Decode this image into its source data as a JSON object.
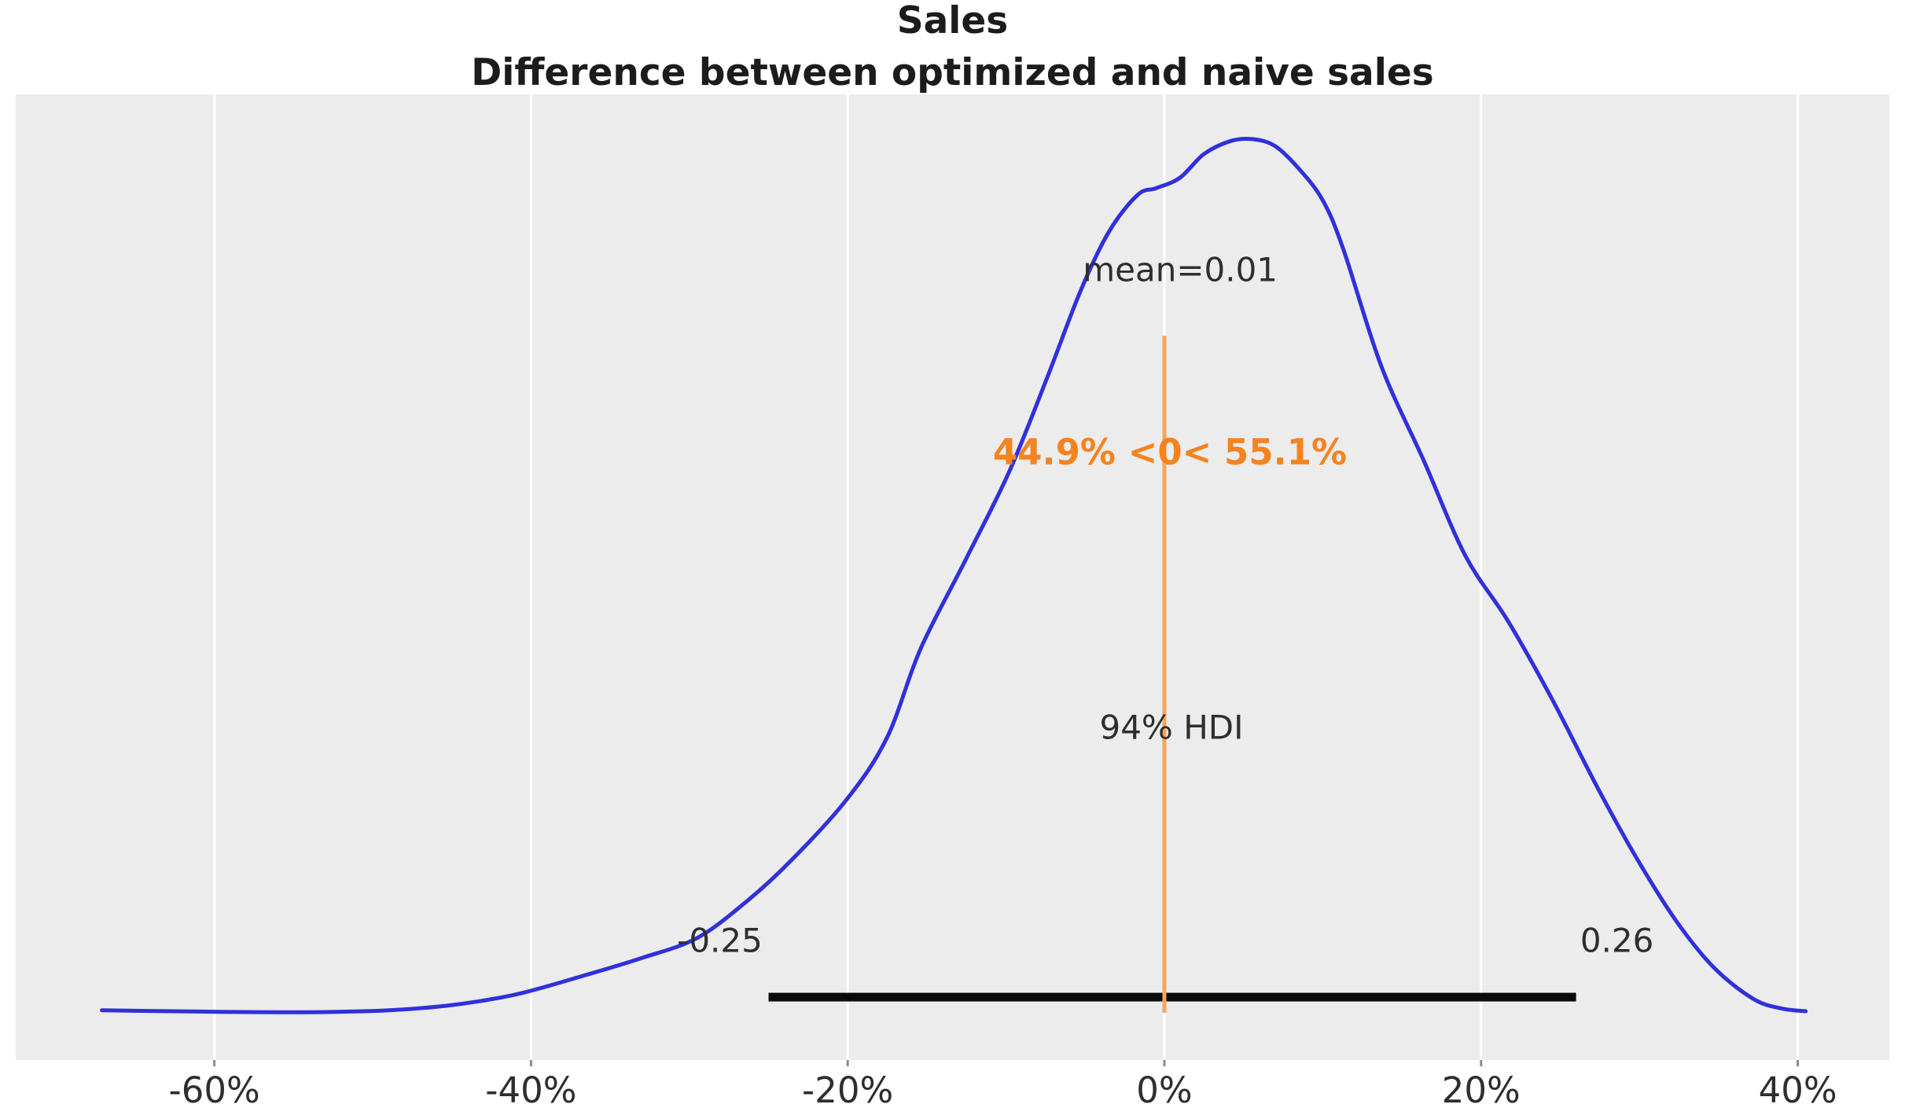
{
  "chart_data": {
    "type": "kde",
    "title": "Sales",
    "subtitle": "Difference between optimized and naive sales",
    "xlabel": "",
    "ylabel": "",
    "xlim": [
      -0.725,
      0.458
    ],
    "grid": "vertical-white-lines",
    "x_ticks": [
      {
        "label": "-60%",
        "value": -0.6
      },
      {
        "label": "-40%",
        "value": -0.4
      },
      {
        "label": "-20%",
        "value": -0.2
      },
      {
        "label": "0%",
        "value": 0.0
      },
      {
        "label": "20%",
        "value": 0.2
      },
      {
        "label": "40%",
        "value": 0.4
      }
    ],
    "mean": {
      "value": 0.01,
      "label": "mean=0.01"
    },
    "ref_val": {
      "value": 0,
      "pct_below": 44.9,
      "pct_above": 55.1,
      "label": "44.9% <0< 55.1%"
    },
    "hdi": {
      "probability": "94%",
      "label": "94% HDI",
      "lower": -0.25,
      "upper": 0.26,
      "lower_label": "-0.25",
      "upper_label": "0.26"
    },
    "curve": {
      "note": "x = difference value (fraction), y = density normalized to peak = 1",
      "points": [
        [
          -0.671,
          0.002
        ],
        [
          -0.63,
          0.001
        ],
        [
          -0.58,
          0.0
        ],
        [
          -0.53,
          0.0
        ],
        [
          -0.49,
          0.002
        ],
        [
          -0.45,
          0.008
        ],
        [
          -0.41,
          0.02
        ],
        [
          -0.37,
          0.04
        ],
        [
          -0.33,
          0.062
        ],
        [
          -0.295,
          0.085
        ],
        [
          -0.263,
          0.128
        ],
        [
          -0.235,
          0.175
        ],
        [
          -0.2,
          0.245
        ],
        [
          -0.175,
          0.315
        ],
        [
          -0.154,
          0.416
        ],
        [
          -0.125,
          0.52
        ],
        [
          -0.098,
          0.619
        ],
        [
          -0.074,
          0.727
        ],
        [
          -0.053,
          0.826
        ],
        [
          -0.035,
          0.894
        ],
        [
          -0.017,
          0.936
        ],
        [
          -0.005,
          0.944
        ],
        [
          0.01,
          0.956
        ],
        [
          0.025,
          0.983
        ],
        [
          0.042,
          0.998
        ],
        [
          0.056,
          1.0
        ],
        [
          0.07,
          0.992
        ],
        [
          0.085,
          0.966
        ],
        [
          0.1,
          0.93
        ],
        [
          0.113,
          0.874
        ],
        [
          0.137,
          0.74
        ],
        [
          0.164,
          0.631
        ],
        [
          0.19,
          0.523
        ],
        [
          0.217,
          0.448
        ],
        [
          0.245,
          0.358
        ],
        [
          0.273,
          0.259
        ],
        [
          0.298,
          0.177
        ],
        [
          0.323,
          0.105
        ],
        [
          0.347,
          0.051
        ],
        [
          0.372,
          0.015
        ],
        [
          0.39,
          0.004
        ],
        [
          0.405,
          0.001
        ]
      ]
    },
    "colors": {
      "curve": "#3030dc",
      "ref_line": "#f8a55c",
      "ref_text": "#f6831e",
      "hdi_bar": "#0a0a0a",
      "plot_bg": "#ececec",
      "gridline": "#ffffff",
      "tick_mark": "#8a8a8a",
      "text": "#2e2e2e",
      "title": "#1c1c1c"
    }
  }
}
